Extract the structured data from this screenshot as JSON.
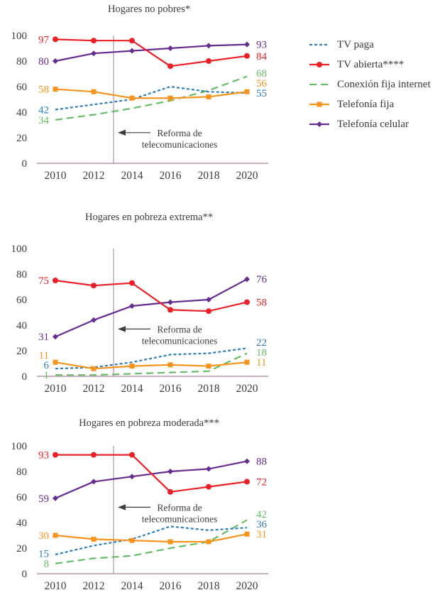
{
  "colors": {
    "axis": "#bc95ad",
    "text": "#3d3d3d",
    "background": "#ffffff"
  },
  "series_styles": {
    "tv_paga": {
      "color": "#2e7ebc",
      "dash": "short",
      "marker": "none"
    },
    "tv_abierta": {
      "color": "#ec2127",
      "dash": "solid",
      "marker": "circle"
    },
    "internet": {
      "color": "#66bd63",
      "dash": "long",
      "marker": "none"
    },
    "fija": {
      "color": "#f7941e",
      "dash": "solid",
      "marker": "square"
    },
    "celular": {
      "color": "#652d90",
      "dash": "solid",
      "marker": "diamond"
    }
  },
  "legend": {
    "items": [
      {
        "key": "tv_paga",
        "label": "TV paga"
      },
      {
        "key": "tv_abierta",
        "label": "TV abierta****"
      },
      {
        "key": "internet",
        "label": "Conexión fija internet"
      },
      {
        "key": "fija",
        "label": "Telefonía fija"
      },
      {
        "key": "celular",
        "label": "Telefonía celular"
      }
    ]
  },
  "annotation": {
    "line1": "Reforma de",
    "line2": "telecomunicaciones",
    "x_year": 2013
  },
  "chart_data": [
    {
      "type": "line",
      "title": "Hogares no pobres*",
      "x": [
        2010,
        2012,
        2014,
        2016,
        2018,
        2020
      ],
      "ylim": [
        0,
        100
      ],
      "yticks": [
        0,
        20,
        40,
        60,
        80,
        100
      ],
      "annotation_y": 24,
      "series": [
        {
          "key": "tv_paga",
          "values": [
            42,
            46,
            50,
            60,
            56,
            55
          ]
        },
        {
          "key": "tv_abierta",
          "values": [
            97,
            96,
            96,
            76,
            80,
            84
          ]
        },
        {
          "key": "internet",
          "values": [
            34,
            38,
            43,
            49,
            57,
            68
          ]
        },
        {
          "key": "fija",
          "values": [
            58,
            56,
            51,
            51,
            52,
            56
          ]
        },
        {
          "key": "celular",
          "values": [
            80,
            86,
            88,
            90,
            92,
            93
          ]
        }
      ]
    },
    {
      "type": "line",
      "title": "Hogares en pobreza extrema**",
      "x": [
        2010,
        2012,
        2014,
        2016,
        2018,
        2020
      ],
      "ylim": [
        0,
        100
      ],
      "yticks": [
        0,
        20,
        40,
        60,
        80,
        100
      ],
      "annotation_y": 37,
      "series": [
        {
          "key": "tv_paga",
          "values": [
            6,
            7,
            11,
            17,
            18,
            22
          ]
        },
        {
          "key": "tv_abierta",
          "values": [
            75,
            71,
            73,
            52,
            51,
            58
          ]
        },
        {
          "key": "internet",
          "values": [
            1,
            1,
            2,
            3,
            4,
            18
          ]
        },
        {
          "key": "fija",
          "values": [
            11,
            6,
            8,
            9,
            8,
            11
          ]
        },
        {
          "key": "celular",
          "values": [
            31,
            44,
            55,
            58,
            60,
            76
          ]
        }
      ]
    },
    {
      "type": "line",
      "title": "Hogares en pobreza moderada***",
      "x": [
        2010,
        2012,
        2014,
        2016,
        2018,
        2020
      ],
      "ylim": [
        0,
        100
      ],
      "yticks": [
        0,
        20,
        40,
        60,
        80,
        100
      ],
      "annotation_y": 52,
      "series": [
        {
          "key": "tv_paga",
          "values": [
            15,
            22,
            27,
            37,
            34,
            36
          ]
        },
        {
          "key": "tv_abierta",
          "values": [
            93,
            93,
            93,
            64,
            68,
            72
          ]
        },
        {
          "key": "internet",
          "values": [
            8,
            12,
            14,
            20,
            25,
            42
          ]
        },
        {
          "key": "fija",
          "values": [
            30,
            27,
            26,
            25,
            25,
            31
          ]
        },
        {
          "key": "celular",
          "values": [
            59,
            72,
            76,
            80,
            82,
            88
          ]
        }
      ]
    }
  ]
}
